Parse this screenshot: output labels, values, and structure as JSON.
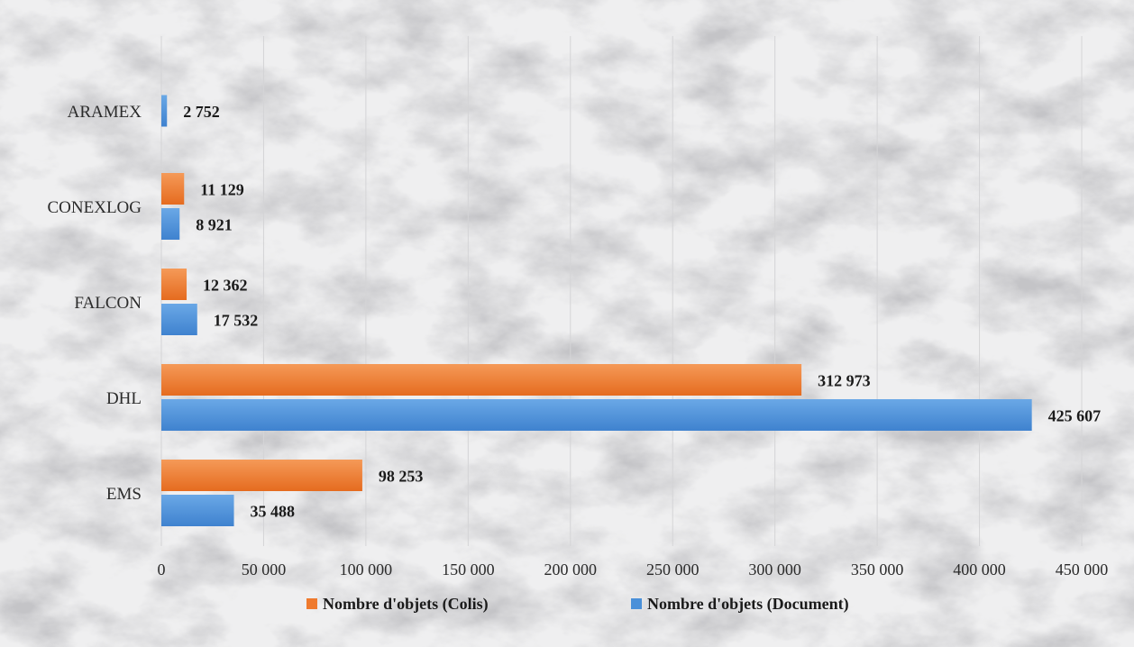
{
  "chart_data": {
    "type": "bar",
    "orientation": "horizontal",
    "categories": [
      "EMS",
      "DHL",
      "FALCON",
      "CONEXLOG",
      "ARAMEX"
    ],
    "series": [
      {
        "name": "Nombre d'objets (Document)",
        "color": "#4a90d9",
        "values": [
          35488,
          425607,
          17532,
          8921,
          2752
        ],
        "labels": [
          "35 488",
          "425 607",
          "17 532",
          "8 921",
          "2 752"
        ]
      },
      {
        "name": "Nombre d'objets (Colis)",
        "color": "#ef7a2e",
        "values": [
          98253,
          312973,
          12362,
          11129,
          null
        ],
        "labels": [
          "98 253",
          "312 973",
          "12 362",
          "11 129",
          null
        ]
      }
    ],
    "xlim": [
      0,
      450000
    ],
    "xticks": [
      0,
      50000,
      100000,
      150000,
      200000,
      250000,
      300000,
      350000,
      400000,
      450000
    ],
    "xtick_labels": [
      "0",
      "50 000",
      "100 000",
      "150 000",
      "200 000",
      "250 000",
      "300 000",
      "350 000",
      "400 000",
      "450 000"
    ],
    "grid": true,
    "legend_position": "bottom",
    "legend_order": [
      "Nombre d'objets (Colis)",
      "Nombre d'objets (Document)"
    ],
    "background": "marble"
  }
}
